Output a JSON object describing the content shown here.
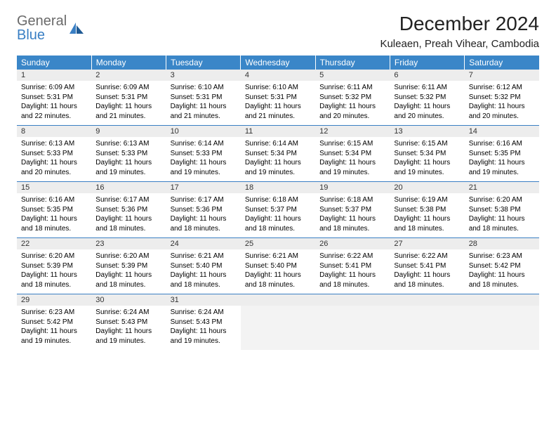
{
  "brand": {
    "part1": "General",
    "part2": "Blue"
  },
  "title": "December 2024",
  "location": "Kuleaen, Preah Vihear, Cambodia",
  "colors": {
    "header_bg": "#3a86c8",
    "header_text": "#ffffff",
    "daynum_bg": "#ededed",
    "rule": "#3a7fc4",
    "logo_gray": "#6a6a6a",
    "logo_blue": "#3a7fc4",
    "page_bg": "#ffffff"
  },
  "day_names": [
    "Sunday",
    "Monday",
    "Tuesday",
    "Wednesday",
    "Thursday",
    "Friday",
    "Saturday"
  ],
  "weeks": [
    [
      {
        "n": "1",
        "sr": "6:09 AM",
        "ss": "5:31 PM",
        "dl": "11 hours and 22 minutes."
      },
      {
        "n": "2",
        "sr": "6:09 AM",
        "ss": "5:31 PM",
        "dl": "11 hours and 21 minutes."
      },
      {
        "n": "3",
        "sr": "6:10 AM",
        "ss": "5:31 PM",
        "dl": "11 hours and 21 minutes."
      },
      {
        "n": "4",
        "sr": "6:10 AM",
        "ss": "5:31 PM",
        "dl": "11 hours and 21 minutes."
      },
      {
        "n": "5",
        "sr": "6:11 AM",
        "ss": "5:32 PM",
        "dl": "11 hours and 20 minutes."
      },
      {
        "n": "6",
        "sr": "6:11 AM",
        "ss": "5:32 PM",
        "dl": "11 hours and 20 minutes."
      },
      {
        "n": "7",
        "sr": "6:12 AM",
        "ss": "5:32 PM",
        "dl": "11 hours and 20 minutes."
      }
    ],
    [
      {
        "n": "8",
        "sr": "6:13 AM",
        "ss": "5:33 PM",
        "dl": "11 hours and 20 minutes."
      },
      {
        "n": "9",
        "sr": "6:13 AM",
        "ss": "5:33 PM",
        "dl": "11 hours and 19 minutes."
      },
      {
        "n": "10",
        "sr": "6:14 AM",
        "ss": "5:33 PM",
        "dl": "11 hours and 19 minutes."
      },
      {
        "n": "11",
        "sr": "6:14 AM",
        "ss": "5:34 PM",
        "dl": "11 hours and 19 minutes."
      },
      {
        "n": "12",
        "sr": "6:15 AM",
        "ss": "5:34 PM",
        "dl": "11 hours and 19 minutes."
      },
      {
        "n": "13",
        "sr": "6:15 AM",
        "ss": "5:34 PM",
        "dl": "11 hours and 19 minutes."
      },
      {
        "n": "14",
        "sr": "6:16 AM",
        "ss": "5:35 PM",
        "dl": "11 hours and 19 minutes."
      }
    ],
    [
      {
        "n": "15",
        "sr": "6:16 AM",
        "ss": "5:35 PM",
        "dl": "11 hours and 18 minutes."
      },
      {
        "n": "16",
        "sr": "6:17 AM",
        "ss": "5:36 PM",
        "dl": "11 hours and 18 minutes."
      },
      {
        "n": "17",
        "sr": "6:17 AM",
        "ss": "5:36 PM",
        "dl": "11 hours and 18 minutes."
      },
      {
        "n": "18",
        "sr": "6:18 AM",
        "ss": "5:37 PM",
        "dl": "11 hours and 18 minutes."
      },
      {
        "n": "19",
        "sr": "6:18 AM",
        "ss": "5:37 PM",
        "dl": "11 hours and 18 minutes."
      },
      {
        "n": "20",
        "sr": "6:19 AM",
        "ss": "5:38 PM",
        "dl": "11 hours and 18 minutes."
      },
      {
        "n": "21",
        "sr": "6:20 AM",
        "ss": "5:38 PM",
        "dl": "11 hours and 18 minutes."
      }
    ],
    [
      {
        "n": "22",
        "sr": "6:20 AM",
        "ss": "5:39 PM",
        "dl": "11 hours and 18 minutes."
      },
      {
        "n": "23",
        "sr": "6:20 AM",
        "ss": "5:39 PM",
        "dl": "11 hours and 18 minutes."
      },
      {
        "n": "24",
        "sr": "6:21 AM",
        "ss": "5:40 PM",
        "dl": "11 hours and 18 minutes."
      },
      {
        "n": "25",
        "sr": "6:21 AM",
        "ss": "5:40 PM",
        "dl": "11 hours and 18 minutes."
      },
      {
        "n": "26",
        "sr": "6:22 AM",
        "ss": "5:41 PM",
        "dl": "11 hours and 18 minutes."
      },
      {
        "n": "27",
        "sr": "6:22 AM",
        "ss": "5:41 PM",
        "dl": "11 hours and 18 minutes."
      },
      {
        "n": "28",
        "sr": "6:23 AM",
        "ss": "5:42 PM",
        "dl": "11 hours and 18 minutes."
      }
    ],
    [
      {
        "n": "29",
        "sr": "6:23 AM",
        "ss": "5:42 PM",
        "dl": "11 hours and 19 minutes."
      },
      {
        "n": "30",
        "sr": "6:24 AM",
        "ss": "5:43 PM",
        "dl": "11 hours and 19 minutes."
      },
      {
        "n": "31",
        "sr": "6:24 AM",
        "ss": "5:43 PM",
        "dl": "11 hours and 19 minutes."
      },
      null,
      null,
      null,
      null
    ]
  ],
  "labels": {
    "sunrise": "Sunrise:",
    "sunset": "Sunset:",
    "daylight": "Daylight:"
  }
}
